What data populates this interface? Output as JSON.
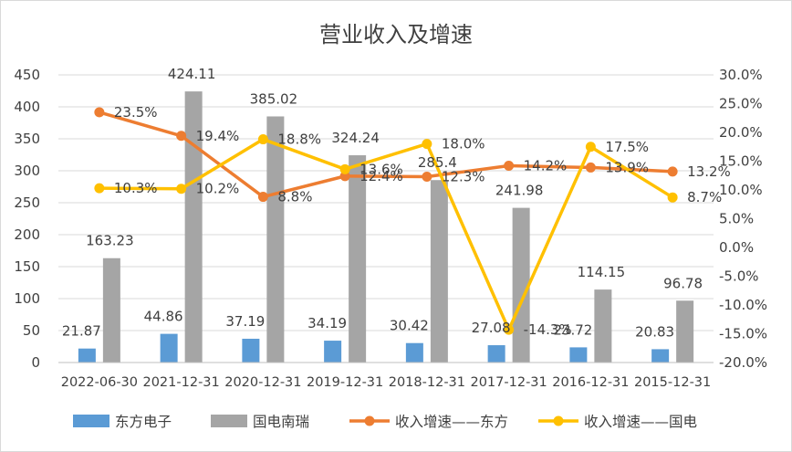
{
  "chart_data": {
    "type": "bar+line",
    "title": "营业收入及增速",
    "categories": [
      "2022-06-30",
      "2021-12-31",
      "2020-12-31",
      "2019-12-31",
      "2018-12-31",
      "2017-12-31",
      "2016-12-31",
      "2015-12-31"
    ],
    "series": [
      {
        "name": "东方电子",
        "kind": "bar",
        "axis": "left",
        "color": "#5b9bd5",
        "values": [
          21.87,
          44.86,
          37.19,
          34.19,
          30.42,
          27.08,
          23.72,
          20.83
        ],
        "labels": [
          "21.87",
          "44.86",
          "37.19",
          "34.19",
          "30.42",
          "27.08",
          "23.72",
          "20.83"
        ]
      },
      {
        "name": "国电南瑞",
        "kind": "bar",
        "axis": "left",
        "color": "#a5a5a5",
        "values": [
          163.23,
          424.11,
          385.02,
          324.24,
          285.4,
          241.98,
          114.15,
          96.78
        ],
        "labels": [
          "163.23",
          "424.11",
          "385.02",
          "324.24",
          "285.4",
          "241.98",
          "114.15",
          "96.78"
        ]
      },
      {
        "name": "收入增速——东方",
        "kind": "line",
        "axis": "right",
        "color": "#ed7d31",
        "values": [
          23.5,
          19.4,
          8.8,
          12.4,
          12.3,
          14.2,
          13.9,
          13.2
        ],
        "labels": [
          "23.5%",
          "19.4%",
          "8.8%",
          "12.4%",
          "12.3%",
          "14.2%",
          "13.9%",
          "13.2%"
        ]
      },
      {
        "name": "收入增速——国电",
        "kind": "line",
        "axis": "right",
        "color": "#ffc000",
        "values": [
          10.3,
          10.2,
          18.8,
          13.6,
          18.0,
          -14.3,
          17.5,
          8.7
        ],
        "labels": [
          "10.3%",
          "10.2%",
          "18.8%",
          "13.6%",
          "18.0%",
          "-14.3%",
          "17.5%",
          "8.7%"
        ]
      }
    ],
    "left_axis": {
      "min": 0,
      "max": 450,
      "ticks": [
        "0",
        "50",
        "100",
        "150",
        "200",
        "250",
        "300",
        "350",
        "400",
        "450"
      ]
    },
    "right_axis": {
      "min": -20,
      "max": 30,
      "ticks": [
        "-20.0%",
        "-15.0%",
        "-10.0%",
        "-5.0%",
        "0.0%",
        "5.0%",
        "10.0%",
        "15.0%",
        "20.0%",
        "25.0%",
        "30.0%"
      ]
    },
    "grid": true,
    "legend_position": "bottom"
  }
}
